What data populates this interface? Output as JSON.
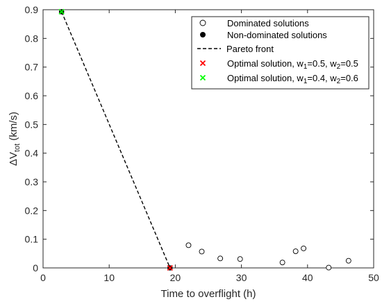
{
  "chart_data": {
    "type": "scatter",
    "xlabel": "Time to overflight (h)",
    "ylabel": {
      "base": "ΔV",
      "sub": "tot",
      "unit": " (km/s)"
    },
    "xlim": [
      0,
      50
    ],
    "ylim": [
      0,
      0.9
    ],
    "xticks": [
      0,
      10,
      20,
      30,
      40,
      50
    ],
    "yticks": [
      0,
      0.1,
      0.2,
      0.3,
      0.4,
      0.5,
      0.6,
      0.7,
      0.8,
      0.9
    ],
    "grid": false,
    "legend_position": "top-right",
    "series": [
      {
        "name": "Dominated solutions",
        "marker": "open-circle",
        "color": "#000000",
        "points": [
          [
            22.0,
            0.079
          ],
          [
            24.0,
            0.057
          ],
          [
            26.8,
            0.033
          ],
          [
            29.8,
            0.031
          ],
          [
            36.2,
            0.019
          ],
          [
            38.2,
            0.058
          ],
          [
            39.4,
            0.068
          ],
          [
            43.2,
            0.001
          ],
          [
            46.2,
            0.025
          ]
        ]
      },
      {
        "name": "Non-dominated solutions",
        "marker": "filled-circle",
        "color": "#000000",
        "points": [
          [
            2.8,
            0.893
          ],
          [
            19.2,
            0.0
          ]
        ]
      },
      {
        "name": "Pareto front",
        "marker": "dashed-line",
        "color": "#000000",
        "points": [
          [
            2.8,
            0.893
          ],
          [
            19.2,
            0.0
          ]
        ]
      },
      {
        "name": "Optimal solution, w1=0.5, w2=0.5",
        "legend_parts": [
          "Optimal solution, w",
          "1",
          "=0.5, w",
          "2",
          "=0.5"
        ],
        "marker": "x",
        "color": "#ff0000",
        "points": [
          [
            19.2,
            0.0
          ]
        ]
      },
      {
        "name": "Optimal solution, w1=0.4, w2=0.6",
        "legend_parts": [
          "Optimal solution, w",
          "1",
          "=0.4, w",
          "2",
          "=0.6"
        ],
        "marker": "x",
        "color": "#00ff00",
        "points": [
          [
            2.8,
            0.893
          ]
        ]
      }
    ]
  }
}
